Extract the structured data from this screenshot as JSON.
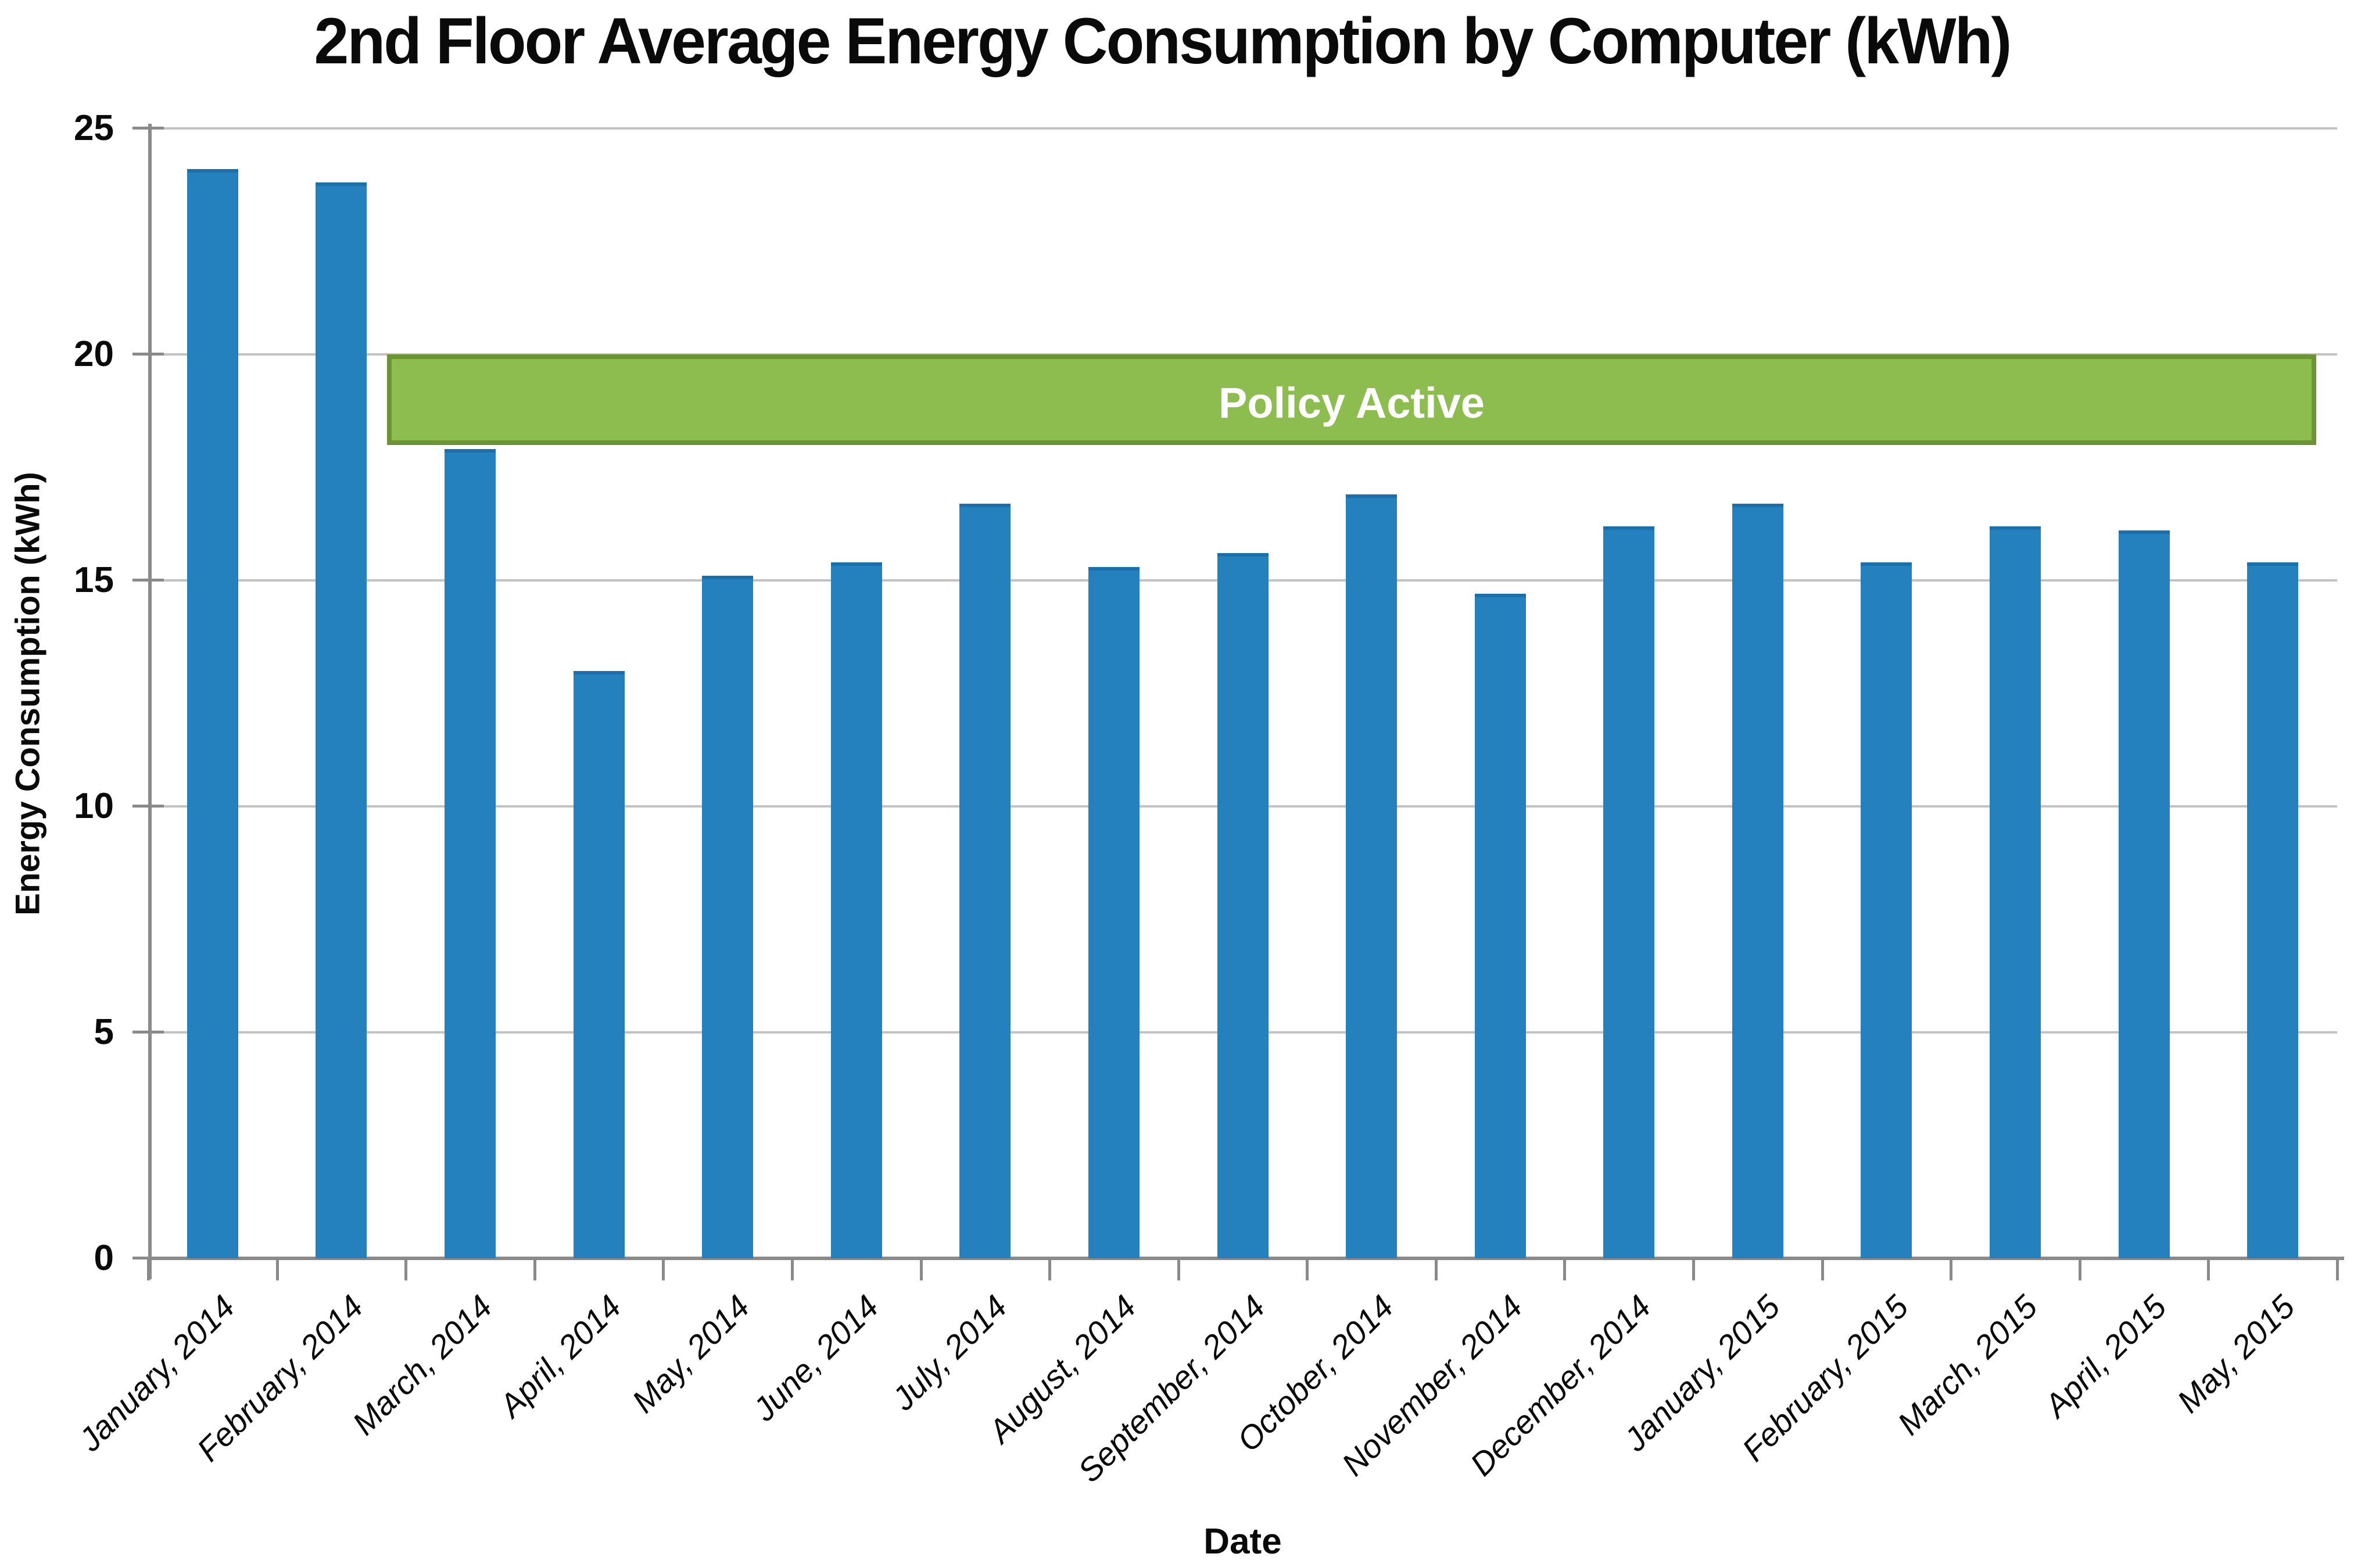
{
  "chart_data": {
    "type": "bar",
    "title": "2nd Floor Average Energy Consumption by Computer (kWh)",
    "xlabel": "Date",
    "ylabel": "Energy Consumption (kWh)",
    "categories": [
      "January, 2014",
      "February, 2014",
      "March, 2014",
      "April, 2014",
      "May, 2014",
      "June, 2014",
      "July, 2014",
      "August, 2014",
      "September, 2014",
      "October, 2014",
      "November, 2014",
      "December, 2014",
      "January, 2015",
      "February, 2015",
      "March, 2015",
      "April, 2015",
      "May, 2015"
    ],
    "values": [
      24.1,
      23.8,
      17.9,
      13.0,
      15.1,
      15.4,
      16.7,
      15.3,
      15.6,
      16.9,
      14.7,
      16.2,
      16.7,
      15.4,
      16.2,
      16.1,
      15.4
    ],
    "ylim": [
      0,
      25
    ],
    "y_ticks": [
      0,
      5,
      10,
      15,
      20,
      25
    ],
    "grid": "horizontal",
    "legend": "none",
    "annotation": {
      "label": "Policy Active",
      "type": "banner",
      "x_start_category": "March, 2014",
      "x_end_category": "May, 2015",
      "y_from": 18.0,
      "y_to": 20.0
    }
  },
  "colors": {
    "bar_fill": "#2581be",
    "bar_top_edge": "#1c6fa9",
    "banner_fill": "#8cbd4e",
    "banner_border": "#6d9434",
    "banner_text": "#ffffff",
    "gridline": "#c3c3c3",
    "axis_line": "#8a8a8a",
    "text": "#0a0a0a",
    "background": "#ffffff"
  }
}
